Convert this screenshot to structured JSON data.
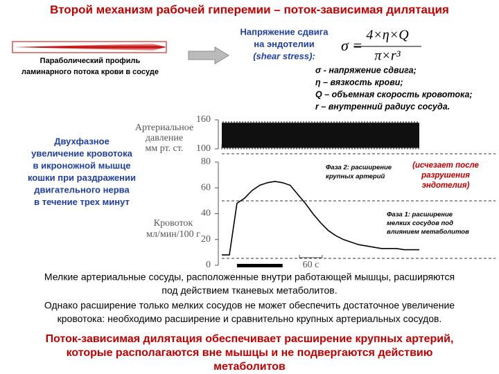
{
  "title": "Второй механизм рабочей гиперемии – поток-зависимая дилятация",
  "profile_label": [
    "Параболический профиль",
    "ламинарного потока крови в сосуде"
  ],
  "shear_label": [
    "Напряжение сдвига",
    "на эндотелии",
    "(shear stress):"
  ],
  "formula": {
    "lhs": "σ =",
    "numerator": "4×η×Q",
    "denominator": "π×r³"
  },
  "definitions": [
    "σ   - напряжение сдвига;",
    "η – вязкость крови;",
    "Q – объемная скорость кровотока;",
    "r – внутренний радиус сосуда."
  ],
  "left_note": [
    "Двухфазное",
    "увеличение кровотока",
    "в икроножной мышце",
    "кошки при раздражении",
    "двигательного нерва",
    "в течение трех минут"
  ],
  "chart_data": {
    "type": "line",
    "pressure_label": [
      "Артериальное",
      "давление",
      "мм рт. ст."
    ],
    "pressure_ylim": [
      100,
      160
    ],
    "pressure_yticks": [
      160,
      100
    ],
    "pressure_low": 102,
    "pressure_high": 154,
    "y_label": [
      "Кровоток",
      "мл/мин/100 г"
    ],
    "ylim": [
      0,
      80
    ],
    "yticks": [
      0,
      20,
      40,
      60,
      80
    ],
    "xlim": [
      0,
      520
    ],
    "x": [
      0,
      20,
      40,
      60,
      80,
      100,
      120,
      140,
      160,
      180,
      200,
      220,
      240,
      260,
      280,
      300,
      320,
      340,
      360,
      380,
      400,
      420,
      440,
      460,
      480,
      500,
      520
    ],
    "series": [
      {
        "name": "Кровоток",
        "color": "#000000",
        "values": [
          8,
          8,
          48,
          52,
          58,
          62,
          64,
          65,
          64,
          62,
          55,
          48,
          40,
          33,
          27,
          23,
          20,
          18,
          16,
          15,
          14,
          13,
          13,
          13,
          12,
          12,
          12
        ]
      }
    ],
    "stimulus": [
      40,
      160
    ],
    "scale_bar": {
      "seconds": 60,
      "label": "60 с"
    },
    "annotations": {
      "phase2": [
        "Фаза 2: расширение",
        "крупных артерий"
      ],
      "note": [
        "(исчезает после",
        "разрушения",
        "эндотелия)"
      ],
      "phase1": [
        "Фаза 1: расширение",
        "мелких сосудов под",
        "влиянием метаболитов"
      ]
    }
  },
  "body": [
    "Мелкие артериальные сосуды, расположенные внутри работающей мышцы, расширяются",
    "под действием тканевых метаболитов.",
    "Однако расширение только мелких сосудов не может обеспечить достаточное увеличение",
    "кровотока: необходимо расширение  и  сравнительно крупных артериальных сосудов."
  ],
  "conclusion": [
    "Поток-зависимая дилятация обеспечивает расширение крупных артерий,",
    "которые располагаются вне мышцы и  не подвергаются действию",
    "метаболитов"
  ]
}
